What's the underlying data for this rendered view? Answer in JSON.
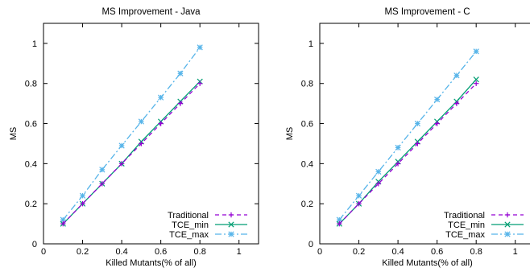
{
  "chart_data": [
    {
      "type": "line",
      "title": "MS Improvement - Java",
      "xlabel": "Killed Mutants(% of all)",
      "ylabel": "MS",
      "xlim": [
        0,
        1.1
      ],
      "ylim": [
        0,
        1.1
      ],
      "xticks": [
        "0",
        "0.2",
        "0.4",
        "0.6",
        "0.8",
        "1"
      ],
      "yticks": [
        "0",
        "0.2",
        "0.4",
        "0.6",
        "0.8",
        "1"
      ],
      "grid": false,
      "legend_position": "bottom-right",
      "x": [
        0.1,
        0.2,
        0.3,
        0.4,
        0.5,
        0.6,
        0.7,
        0.8
      ],
      "series": [
        {
          "name": "Traditional",
          "values": [
            0.1,
            0.2,
            0.3,
            0.4,
            0.5,
            0.6,
            0.7,
            0.8
          ],
          "color": "#9400d3",
          "dash": "5,4",
          "marker": "plus"
        },
        {
          "name": "TCE_min",
          "values": [
            0.1,
            0.2,
            0.3,
            0.4,
            0.51,
            0.61,
            0.71,
            0.81
          ],
          "color": "#009e73",
          "dash": "",
          "marker": "x"
        },
        {
          "name": "TCE_max",
          "values": [
            0.12,
            0.24,
            0.37,
            0.49,
            0.61,
            0.73,
            0.85,
            0.98
          ],
          "color": "#56b4e9",
          "dash": "8,3,2,3",
          "marker": "star"
        }
      ]
    },
    {
      "type": "line",
      "title": "MS Improvement - C",
      "xlabel": "Killed Mutants(% of all)",
      "ylabel": "MS",
      "xlim": [
        0,
        1.1
      ],
      "ylim": [
        0,
        1.1
      ],
      "xticks": [
        "0",
        "0.2",
        "0.4",
        "0.6",
        "0.8",
        "1"
      ],
      "yticks": [
        "0",
        "0.2",
        "0.4",
        "0.6",
        "0.8",
        "1"
      ],
      "grid": false,
      "legend_position": "bottom-right",
      "x": [
        0.1,
        0.2,
        0.3,
        0.4,
        0.5,
        0.6,
        0.7,
        0.8
      ],
      "series": [
        {
          "name": "Traditional",
          "values": [
            0.1,
            0.2,
            0.3,
            0.4,
            0.5,
            0.6,
            0.7,
            0.8
          ],
          "color": "#9400d3",
          "dash": "5,4",
          "marker": "plus"
        },
        {
          "name": "TCE_min",
          "values": [
            0.1,
            0.2,
            0.31,
            0.41,
            0.51,
            0.61,
            0.71,
            0.82
          ],
          "color": "#009e73",
          "dash": "",
          "marker": "x"
        },
        {
          "name": "TCE_max",
          "values": [
            0.12,
            0.24,
            0.36,
            0.48,
            0.6,
            0.72,
            0.84,
            0.96
          ],
          "color": "#56b4e9",
          "dash": "8,3,2,3",
          "marker": "star"
        }
      ]
    }
  ]
}
